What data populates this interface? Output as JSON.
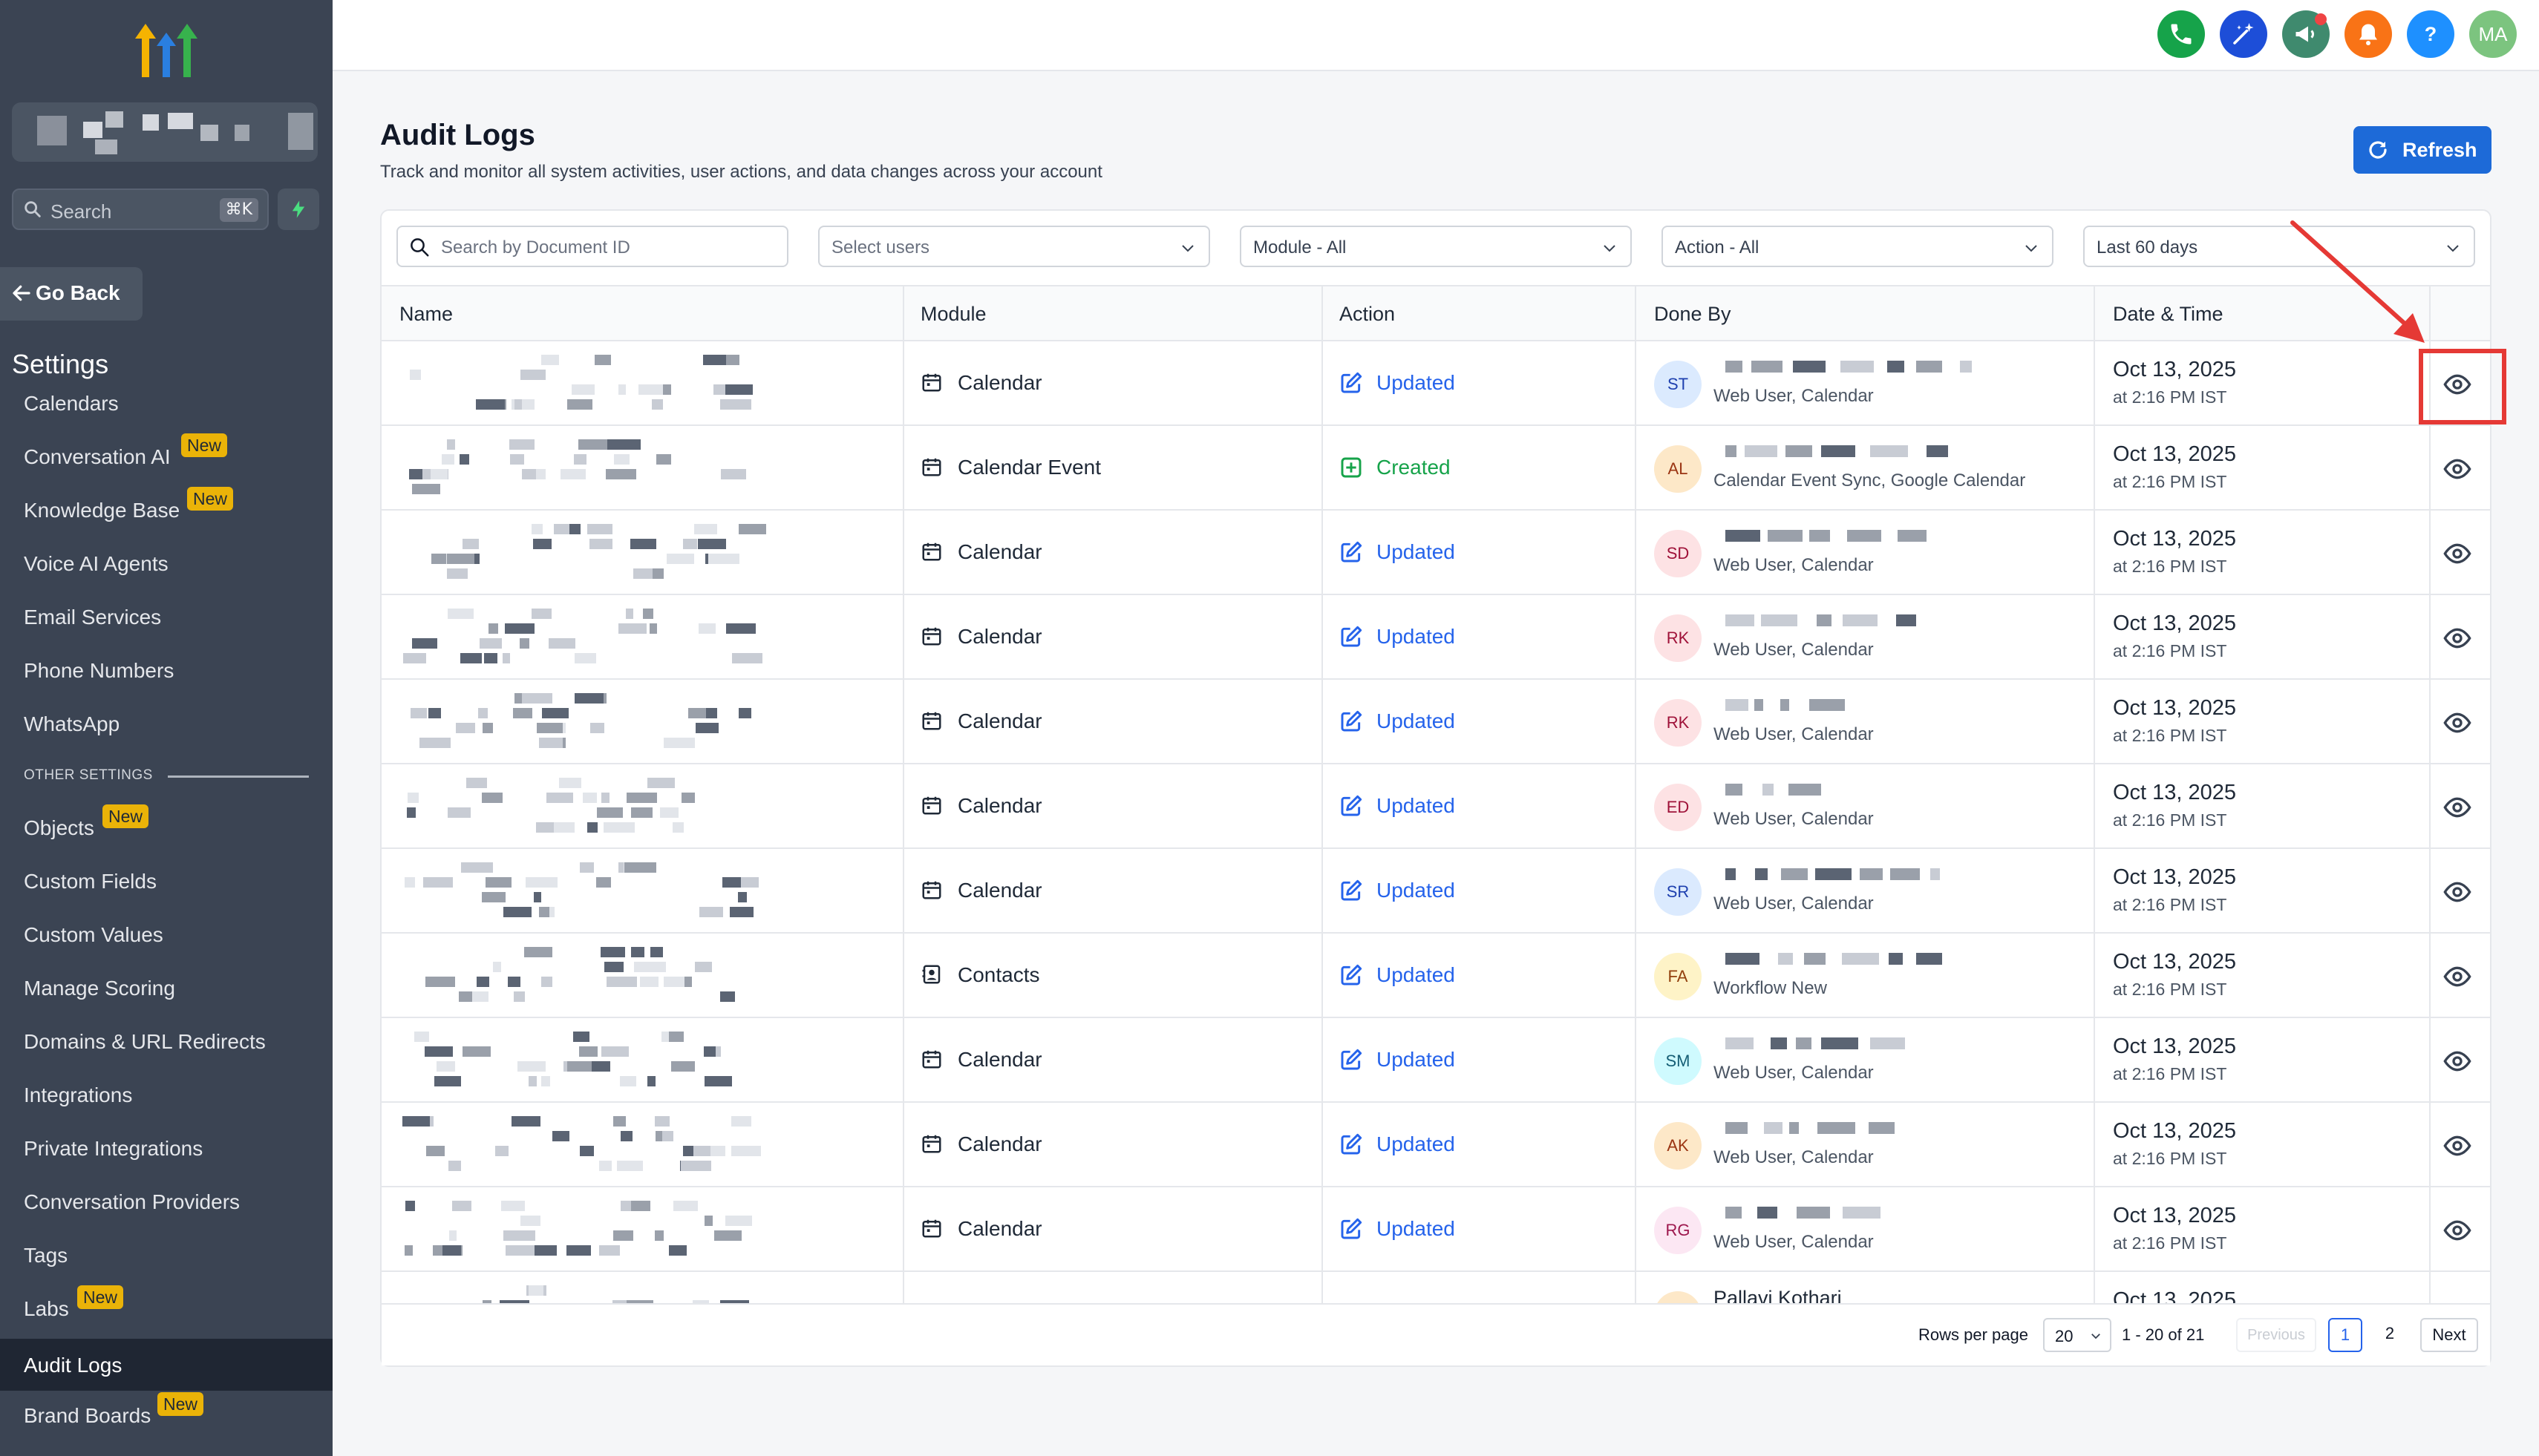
{
  "sidebar": {
    "search_placeholder": "Search",
    "search_shortcut": "⌘K",
    "go_back": "Go Back",
    "settings_title": "Settings",
    "items": [
      {
        "label": "Calendars",
        "badge": ""
      },
      {
        "label": "Conversation AI",
        "badge": "New"
      },
      {
        "label": "Knowledge Base",
        "badge": "New"
      },
      {
        "label": "Voice AI Agents",
        "badge": ""
      },
      {
        "label": "Email Services",
        "badge": ""
      },
      {
        "label": "Phone Numbers",
        "badge": ""
      },
      {
        "label": "WhatsApp",
        "badge": ""
      }
    ],
    "other_settings_label": "OTHER SETTINGS",
    "other_items": [
      {
        "label": "Objects",
        "badge": "New"
      },
      {
        "label": "Custom Fields",
        "badge": ""
      },
      {
        "label": "Custom Values",
        "badge": ""
      },
      {
        "label": "Manage Scoring",
        "badge": ""
      },
      {
        "label": "Domains & URL Redirects",
        "badge": ""
      },
      {
        "label": "Integrations",
        "badge": ""
      },
      {
        "label": "Private Integrations",
        "badge": ""
      },
      {
        "label": "Conversation Providers",
        "badge": ""
      },
      {
        "label": "Tags",
        "badge": ""
      },
      {
        "label": "Labs",
        "badge": "New"
      },
      {
        "label": "Audit Logs",
        "badge": "",
        "active": true
      },
      {
        "label": "Brand Boards",
        "badge": "New"
      }
    ]
  },
  "header": {
    "avatar_initials": "MA",
    "icons": [
      "phone-icon",
      "magic-icon",
      "megaphone-icon",
      "bell-icon",
      "help-icon"
    ]
  },
  "page": {
    "title": "Audit Logs",
    "subtitle": "Track and monitor all system activities, user actions, and data changes across your account",
    "refresh": "Refresh"
  },
  "filters": {
    "search_placeholder": "Search by Document ID",
    "users": "Select users",
    "module": "Module - All",
    "action": "Action - All",
    "range": "Last 60 days"
  },
  "table": {
    "columns": [
      "Name",
      "Module",
      "Action",
      "Done By",
      "Date & Time"
    ],
    "rows": [
      {
        "module": "Calendar",
        "module_icon": "calendar-icon",
        "action": "Updated",
        "initials": "ST",
        "done_by_sub": "Web User, Calendar",
        "date": "Oct 13, 2025",
        "time": "at 2:16 PM IST"
      },
      {
        "module": "Calendar Event",
        "module_icon": "calendar-icon",
        "action": "Created",
        "initials": "AL",
        "done_by_sub": "Calendar Event Sync, Google Calendar",
        "date": "Oct 13, 2025",
        "time": "at 2:16 PM IST"
      },
      {
        "module": "Calendar",
        "module_icon": "calendar-icon",
        "action": "Updated",
        "initials": "SD",
        "done_by_sub": "Web User, Calendar",
        "date": "Oct 13, 2025",
        "time": "at 2:16 PM IST"
      },
      {
        "module": "Calendar",
        "module_icon": "calendar-icon",
        "action": "Updated",
        "initials": "RK",
        "done_by_sub": "Web User, Calendar",
        "date": "Oct 13, 2025",
        "time": "at 2:16 PM IST"
      },
      {
        "module": "Calendar",
        "module_icon": "calendar-icon",
        "action": "Updated",
        "initials": "RK",
        "done_by_sub": "Web User, Calendar",
        "date": "Oct 13, 2025",
        "time": "at 2:16 PM IST"
      },
      {
        "module": "Calendar",
        "module_icon": "calendar-icon",
        "action": "Updated",
        "initials": "ED",
        "done_by_sub": "Web User, Calendar",
        "date": "Oct 13, 2025",
        "time": "at 2:16 PM IST"
      },
      {
        "module": "Calendar",
        "module_icon": "calendar-icon",
        "action": "Updated",
        "initials": "SR",
        "done_by_sub": "Web User, Calendar",
        "date": "Oct 13, 2025",
        "time": "at 2:16 PM IST"
      },
      {
        "module": "Contacts",
        "module_icon": "contact-card-icon",
        "action": "Updated",
        "initials": "FA",
        "done_by_sub": "Workflow New",
        "date": "Oct 13, 2025",
        "time": "at 2:16 PM IST"
      },
      {
        "module": "Calendar",
        "module_icon": "calendar-icon",
        "action": "Updated",
        "initials": "SM",
        "done_by_sub": "Web User, Calendar",
        "date": "Oct 13, 2025",
        "time": "at 2:16 PM IST"
      },
      {
        "module": "Calendar",
        "module_icon": "calendar-icon",
        "action": "Updated",
        "initials": "AK",
        "done_by_sub": "Web User, Calendar",
        "date": "Oct 13, 2025",
        "time": "at 2:16 PM IST"
      },
      {
        "module": "Calendar",
        "module_icon": "calendar-icon",
        "action": "Updated",
        "initials": "RG",
        "done_by_sub": "Web User, Calendar",
        "date": "Oct 13, 2025",
        "time": "at 2:16 PM IST"
      },
      {
        "module": "",
        "module_icon": "",
        "action": "",
        "initials": "",
        "done_by_name": "Pallavi Kothari",
        "done_by_sub": "",
        "date": "Oct 13, 2025",
        "time": ""
      }
    ]
  },
  "pagination": {
    "rows_per_page_label": "Rows per page",
    "rows_per_page": "20",
    "range": "1 - 20 of 21",
    "previous": "Previous",
    "pages": [
      "1",
      "2"
    ],
    "next": "Next"
  }
}
